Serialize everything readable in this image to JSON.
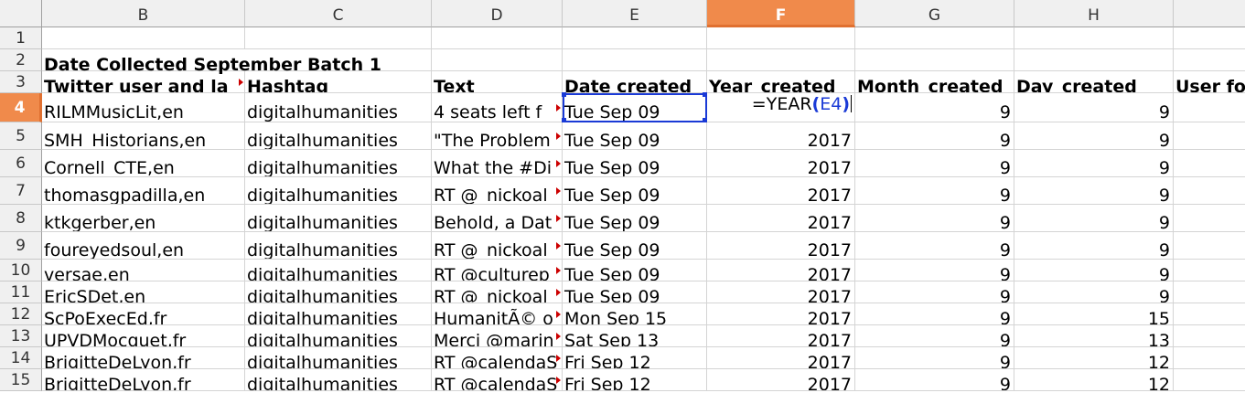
{
  "columns": [
    "B",
    "C",
    "D",
    "E",
    "F",
    "G",
    "H",
    ""
  ],
  "selected_column": "F",
  "selected_row": 4,
  "rows": [
    {
      "num": "1",
      "cells": [
        "",
        "",
        "",
        "",
        "",
        "",
        "",
        ""
      ]
    },
    {
      "num": "2",
      "cells": [
        "Date Collected September Batch 1",
        "",
        "",
        "",
        "",
        "",
        "",
        ""
      ]
    },
    {
      "num": "3",
      "cells": [
        "Twitter user and la",
        "Hashtag",
        "Text",
        "Date created",
        "Year_created",
        "Month_created",
        "Day_created",
        "User fo"
      ]
    },
    {
      "num": "4",
      "cells": [
        "RILMMusicLit,en",
        "digitalhumanities",
        "4 seats left f",
        "Tue Sep 09",
        "",
        "9",
        "9",
        ""
      ]
    },
    {
      "num": "5",
      "cells": [
        "SMH_Historians,en",
        "digitalhumanities",
        "\"The Problem",
        "Tue Sep 09",
        "2017",
        "9",
        "9",
        ""
      ]
    },
    {
      "num": "6",
      "cells": [
        "Cornell_CTE,en",
        "digitalhumanities",
        "What the #Di",
        "Tue Sep 09",
        "2017",
        "9",
        "9",
        ""
      ]
    },
    {
      "num": "7",
      "cells": [
        "thomasgpadilla,en",
        "digitalhumanities",
        "RT @_nickoal_",
        "Tue Sep 09",
        "2017",
        "9",
        "9",
        ""
      ]
    },
    {
      "num": "8",
      "cells": [
        "ktkgerber,en",
        "digitalhumanities",
        "Behold, a Dat",
        "Tue Sep 09",
        "2017",
        "9",
        "9",
        ""
      ]
    },
    {
      "num": "9",
      "cells": [
        "foureyedsoul,en",
        "digitalhumanities",
        "RT @_nickoal_",
        "Tue Sep 09",
        "2017",
        "9",
        "9",
        ""
      ]
    },
    {
      "num": "10",
      "cells": [
        "versae,en",
        "digitalhumanities",
        "RT @culturep",
        "Tue Sep 09",
        "2017",
        "9",
        "9",
        ""
      ]
    },
    {
      "num": "11",
      "cells": [
        "EricSDet,en",
        "digitalhumanities",
        "RT @_nickoal_",
        "Tue Sep 09",
        "2017",
        "9",
        "9",
        ""
      ]
    },
    {
      "num": "12",
      "cells": [
        "ScPoExecEd,fr",
        "digitalhumanities",
        "HumanitÃ© o",
        "Mon Sep 15",
        "2017",
        "9",
        "15",
        ""
      ]
    },
    {
      "num": "13",
      "cells": [
        "UPVDMocquet,fr",
        "digitalhumanities",
        "Merci @marin",
        "Sat Sep 13",
        "2017",
        "9",
        "13",
        ""
      ]
    },
    {
      "num": "14",
      "cells": [
        "BrigitteDeLyon,fr",
        "digitalhumanities",
        "RT @calendaS",
        "Fri Sep 12",
        "2017",
        "9",
        "12",
        ""
      ]
    },
    {
      "num": "15",
      "cells": [
        "BrigitteDeLyon,fr",
        "digitalhumanities",
        "RT @calendaS",
        "Fri Sep 12",
        "2017",
        "9",
        "12",
        ""
      ]
    }
  ],
  "active_formula": {
    "fn": "=YEAR",
    "open": "(",
    "ref": "E4",
    "close": ")"
  },
  "colors": {
    "accent": "#f08a4b",
    "selection": "#1a3ad6",
    "overflow_marker": "#cc0000"
  }
}
